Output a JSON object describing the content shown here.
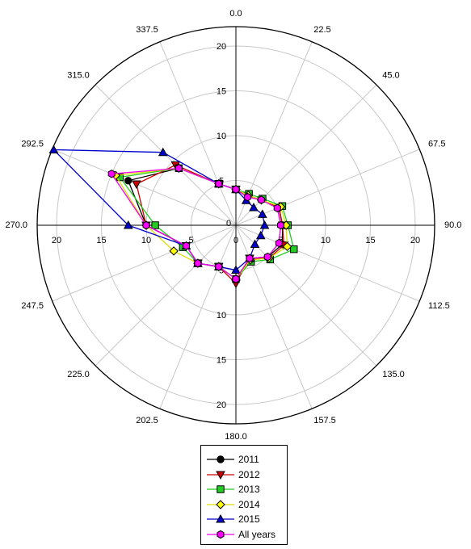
{
  "chart_data": {
    "type": "polar-line",
    "title": "",
    "radial_range": [
      0,
      20
    ],
    "radial_ticks": [
      0,
      5,
      10,
      15,
      20
    ],
    "angle_ticks": [
      0.0,
      22.5,
      45.0,
      67.5,
      90.0,
      112.5,
      135.0,
      157.5,
      180.0,
      202.5,
      225.0,
      247.5,
      270.0,
      292.5,
      315.0,
      337.5
    ],
    "angle_tick_labels": [
      "0.0",
      "22.5",
      "45.0",
      "67.5",
      "90.0",
      "112.5",
      "135.0",
      "157.5",
      "180.0",
      "202.5",
      "225.0",
      "247.5",
      "270.0",
      "292.5",
      "315.0",
      "337.5"
    ],
    "angle_direction": "clockwise",
    "zero_angle": "top",
    "grid": true,
    "legend_position": "bottom",
    "angles": [
      0.0,
      22.5,
      45.0,
      67.5,
      90.0,
      112.5,
      135.0,
      157.5,
      180.0,
      202.5,
      225.0,
      247.5,
      270.0,
      292.5,
      315.0,
      337.5
    ],
    "series": [
      {
        "name": "2011",
        "marker": "circle",
        "color": "#000000",
        "fill": "#000000",
        "values": [
          4.0,
          3.6,
          4.0,
          5.2,
          5.2,
          5.6,
          5.0,
          4.0,
          6.0,
          5.0,
          6.0,
          6.0,
          10.0,
          13.0,
          9.0,
          5.0
        ]
      },
      {
        "name": "2012",
        "marker": "triangle-down",
        "color": "#cc0000",
        "fill": "#cc0000",
        "values": [
          4.0,
          3.6,
          4.0,
          5.2,
          5.2,
          5.8,
          5.2,
          4.0,
          6.5,
          5.0,
          6.0,
          6.0,
          10.0,
          12.0,
          9.5,
          5.0
        ]
      },
      {
        "name": "2013",
        "marker": "square",
        "color": "#22cc22",
        "fill": "#22cc22",
        "values": [
          4.0,
          3.8,
          4.2,
          5.6,
          5.8,
          7.0,
          5.4,
          4.4,
          6.0,
          5.0,
          6.0,
          6.4,
          9.0,
          14.0,
          9.0,
          5.0
        ]
      },
      {
        "name": "2014",
        "marker": "diamond",
        "color": "#dddd00",
        "fill": "#ffff00",
        "values": [
          4.0,
          3.6,
          4.0,
          5.4,
          5.6,
          6.2,
          5.2,
          4.2,
          6.0,
          5.0,
          6.0,
          7.5,
          10.0,
          14.5,
          9.0,
          5.0
        ]
      },
      {
        "name": "2015",
        "marker": "triangle-up",
        "color": "#0000cc",
        "fill": "#0000cc",
        "values": [
          4.0,
          3.0,
          2.8,
          3.2,
          3.2,
          3.0,
          3.0,
          4.0,
          5.0,
          5.0,
          6.0,
          6.0,
          12.0,
          22.0,
          11.5,
          5.0
        ]
      },
      {
        "name": "All years",
        "marker": "hexagon",
        "color": "#ee00ee",
        "fill": "#ff00ff",
        "values": [
          4.0,
          3.4,
          4.0,
          5.0,
          5.0,
          5.2,
          5.0,
          4.0,
          6.0,
          5.0,
          6.0,
          6.0,
          10.0,
          15.0,
          9.0,
          5.0
        ]
      }
    ]
  }
}
